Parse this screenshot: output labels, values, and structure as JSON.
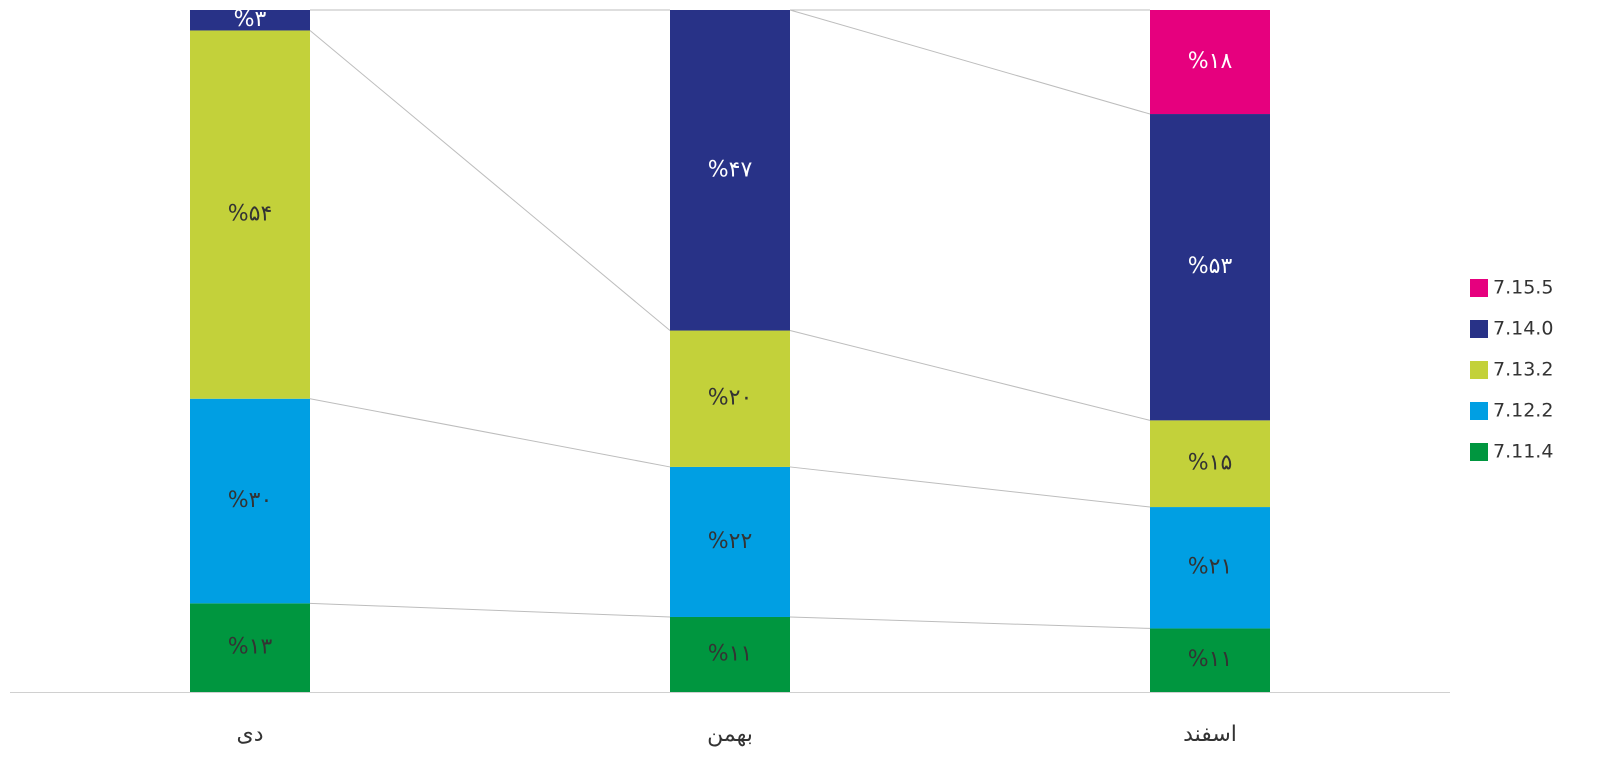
{
  "chart_data": {
    "type": "bar",
    "stacking": "percent",
    "categories": [
      "دی",
      "بهمن",
      "اسفند"
    ],
    "series": [
      {
        "name": "7.11.4",
        "color": "#00963f",
        "label_color": "#333333",
        "values": [
          13,
          11,
          11
        ],
        "value_labels": [
          "%۱۳",
          "%۱۱",
          "%۱۱"
        ]
      },
      {
        "name": "7.12.2",
        "color": "#009fe3",
        "label_color": "#333333",
        "values": [
          30,
          22,
          21
        ],
        "value_labels": [
          "%۳۰",
          "%۲۲",
          "%۲۱"
        ]
      },
      {
        "name": "7.13.2",
        "color": "#c3d13a",
        "label_color": "#333333",
        "values": [
          54,
          20,
          15
        ],
        "value_labels": [
          "%۵۴",
          "%۲۰",
          "%۱۵"
        ]
      },
      {
        "name": "7.14.0",
        "color": "#283287",
        "label_color": "#ffffff",
        "values": [
          3,
          47,
          53
        ],
        "value_labels": [
          "%۳",
          "%۴۷",
          "%۵۳"
        ]
      },
      {
        "name": "7.15.5",
        "color": "#e6007e",
        "label_color": "#ffffff",
        "values": [
          0,
          0,
          18
        ],
        "value_labels": [
          null,
          null,
          "%۱۸"
        ]
      }
    ],
    "series_lines": true,
    "legend": "right"
  }
}
